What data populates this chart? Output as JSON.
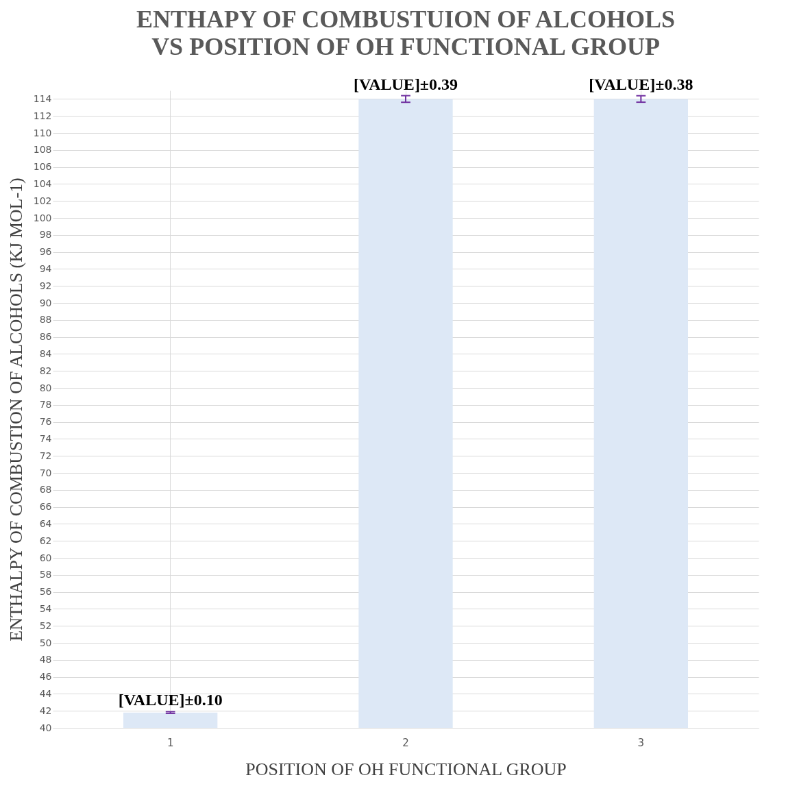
{
  "chart_data": {
    "type": "bar",
    "title": "ENTHAPY OF COMBUSTUION OF ALCOHOLS VS POSITION OF OH FUNCTIONAL GROUP",
    "xlabel": "POSITION OF OH FUNCTIONAL GROUP",
    "ylabel": "ENTHALPY OF COMBUSTION OF ALCOHOLS (KJ MOL-1)",
    "categories": [
      "1",
      "2",
      "3"
    ],
    "values": [
      41.8,
      114,
      114
    ],
    "errors": [
      0.1,
      0.39,
      0.38
    ],
    "annotations": [
      {
        "text": "[VALUE]±0.10",
        "x": "1",
        "y": 41.9
      },
      {
        "text": "[VALUE]±0.39",
        "x": "2",
        "y": 114.39
      },
      {
        "text": "[VALUE]±0.38",
        "x": "3",
        "y": 114.38
      }
    ],
    "color": "#dde8f6",
    "ylim": [
      40,
      115
    ],
    "yticks": [
      40,
      42,
      44,
      46,
      48,
      50,
      52,
      54,
      56,
      58,
      60,
      62,
      64,
      66,
      68,
      70,
      72,
      74,
      76,
      78,
      80,
      82,
      84,
      86,
      88,
      90,
      92,
      94,
      96,
      98,
      100,
      102,
      104,
      106,
      108,
      110,
      112,
      114
    ],
    "grid": true
  }
}
